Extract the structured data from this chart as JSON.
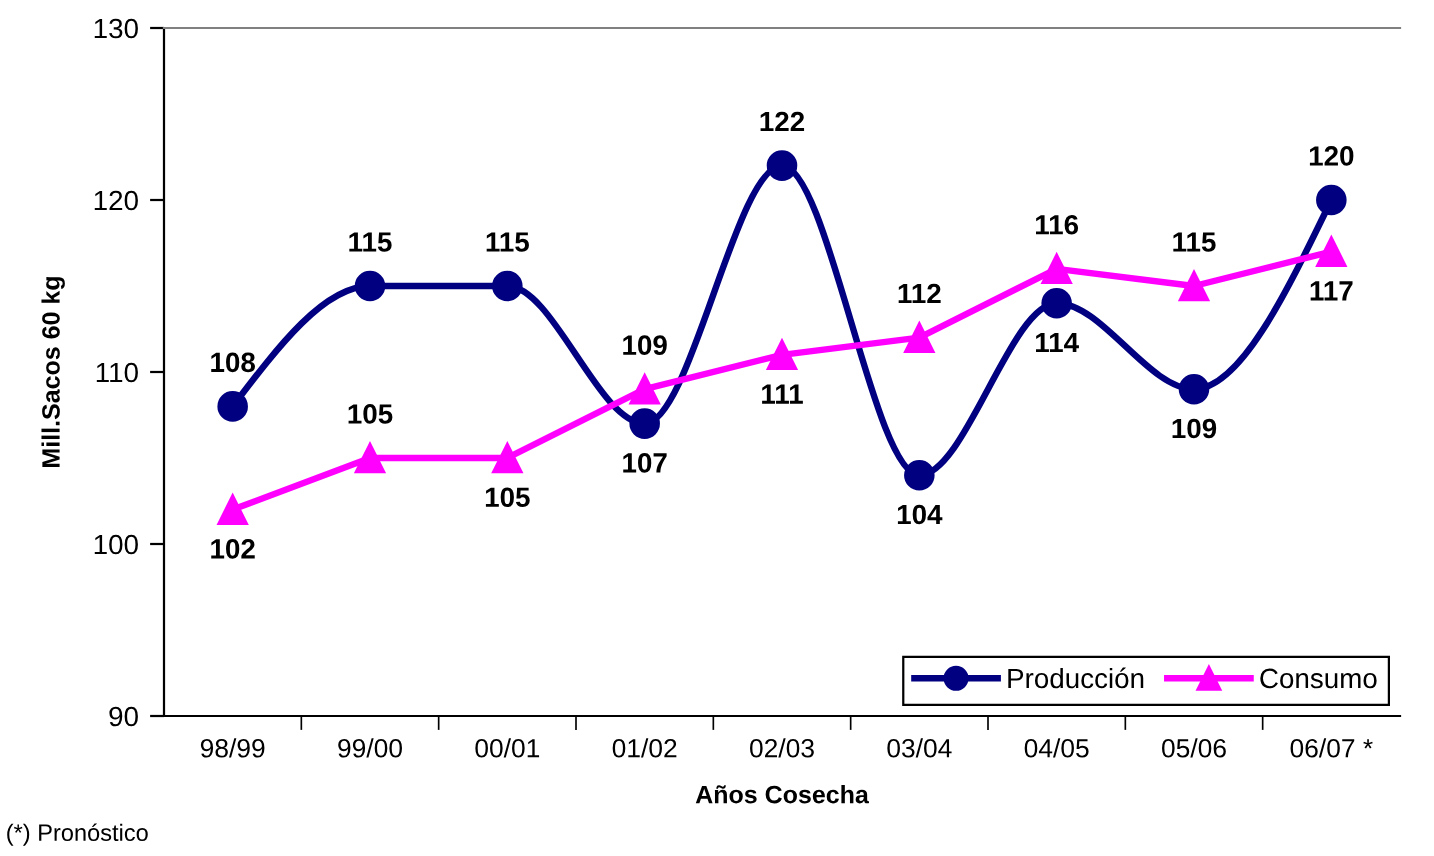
{
  "chart_data": {
    "type": "line",
    "xlabel": "Años Cosecha",
    "ylabel": "Mill.Sacos 60 kg",
    "annotations": [
      "(*) Pronóstico"
    ],
    "categories": [
      "98/99",
      "99/00",
      "00/01",
      "01/02",
      "02/03",
      "03/04",
      "04/05",
      "05/06",
      "06/07 *"
    ],
    "series": [
      {
        "name": "Producción",
        "color": "#000080",
        "marker": "circle",
        "values": [
          108,
          115,
          115,
          107,
          122,
          104,
          114,
          109,
          120
        ]
      },
      {
        "name": "Consumo",
        "color": "#ff00ff",
        "marker": "triangle",
        "values": [
          102,
          105,
          105,
          109,
          111,
          112,
          116,
          115,
          117
        ]
      }
    ],
    "ylim": [
      90,
      130
    ],
    "yticks": [
      90,
      100,
      110,
      120,
      130
    ],
    "data_labels": true,
    "legend": "bottom right",
    "grid": false
  }
}
